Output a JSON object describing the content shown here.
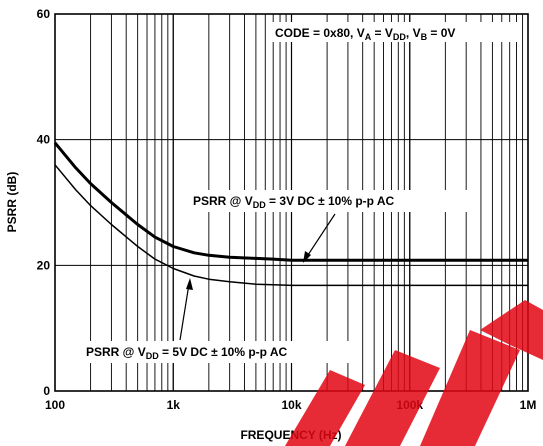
{
  "chart_data": {
    "type": "line",
    "xlabel": "FREQUENCY (Hz)",
    "ylabel": "PSRR (dB)",
    "x_scale": "log",
    "xlim": [
      100,
      1000000
    ],
    "ylim": [
      0,
      60
    ],
    "grid": true,
    "x_ticks": [
      {
        "value": 100,
        "label": "100"
      },
      {
        "value": 1000,
        "label": "1k"
      },
      {
        "value": 10000,
        "label": "10k"
      },
      {
        "value": 100000,
        "label": "100k"
      },
      {
        "value": 1000000,
        "label": "1M"
      }
    ],
    "y_ticks": [
      {
        "value": 0,
        "label": "0"
      },
      {
        "value": 20,
        "label": "20"
      },
      {
        "value": 40,
        "label": "40"
      },
      {
        "value": 60,
        "label": "60"
      }
    ],
    "condition_note": {
      "p1": "CODE = 0x80, V",
      "s1": "A",
      "p2": " = V",
      "s2": "DD",
      "p3": ", V",
      "s3": "B",
      "p4": " = 0V"
    },
    "series": [
      {
        "label_parts": {
          "pre": "PSRR @ V",
          "sub": "DD",
          "post": " = 3V DC ± 10% p-p AC"
        },
        "stroke_width": 3,
        "x": [
          100,
          150,
          200,
          300,
          500,
          700,
          1000,
          1500,
          2000,
          3000,
          5000,
          7000,
          10000,
          20000,
          50000,
          100000,
          200000,
          500000,
          1000000
        ],
        "y": [
          39.5,
          35.5,
          33,
          30,
          26.5,
          24.5,
          23,
          22,
          21.6,
          21.3,
          21.1,
          21,
          20.8,
          20.8,
          20.8,
          20.8,
          20.8,
          20.8,
          20.8
        ]
      },
      {
        "label_parts": {
          "pre": "PSRR @ V",
          "sub": "DD",
          "post": " = 5V DC ± 10% p-p AC"
        },
        "stroke_width": 1.5,
        "x": [
          100,
          150,
          200,
          300,
          500,
          700,
          1000,
          1500,
          2000,
          3000,
          5000,
          7000,
          10000,
          20000,
          50000,
          100000,
          200000,
          500000,
          1000000
        ],
        "y": [
          36,
          32,
          29.5,
          26.5,
          23,
          21,
          19.5,
          18.3,
          17.8,
          17.4,
          17,
          16.9,
          16.8,
          16.8,
          16.8,
          16.8,
          16.8,
          16.8,
          16.8
        ]
      }
    ]
  }
}
